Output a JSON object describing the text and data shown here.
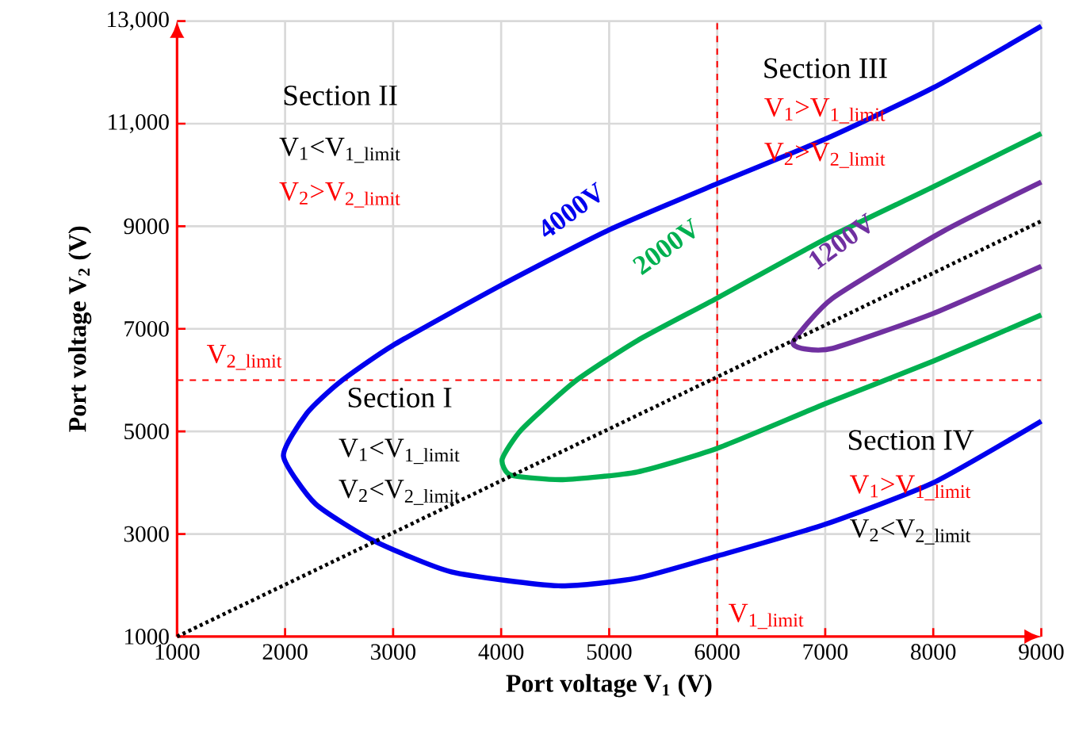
{
  "chart_data": {
    "type": "line",
    "xlabel": "Port voltage V$_{1}$ (V)",
    "ylabel": "Port voltage V$_{2}$ (V)",
    "xlim": [
      1000,
      9000
    ],
    "ylim": [
      1000,
      13000
    ],
    "xticks": [
      1000,
      2000,
      3000,
      4000,
      5000,
      6000,
      7000,
      8000,
      9000
    ],
    "yticks": [
      1000,
      3000,
      5000,
      7000,
      9000,
      {
        "value": 11000,
        "label": "11,000"
      },
      {
        "value": 13000,
        "label": "13,000"
      }
    ],
    "grid": true,
    "marker": "none",
    "series": [
      {
        "name": "4000V",
        "color": "#0000ee",
        "x": [
          9000,
          8000,
          7000,
          6000,
          5260,
          4530,
          3540,
          2810,
          2280,
          1985,
          2200,
          2500,
          3000,
          4000,
          5000,
          6000,
          7000,
          8000,
          9000
        ],
        "values": [
          5200,
          4000,
          3190,
          2570,
          2140,
          1990,
          2260,
          2880,
          3590,
          4520,
          5350,
          5950,
          6680,
          7850,
          8930,
          9830,
          10700,
          11700,
          12900
        ]
      },
      {
        "name": "2000V",
        "color": "#00b050",
        "x": [
          9000,
          8000,
          7000,
          6000,
          5260,
          4570,
          4090,
          4010,
          4190,
          4680,
          5260,
          6000,
          7000,
          8000,
          9000
        ],
        "values": [
          7270,
          6370,
          5540,
          4670,
          4210,
          4060,
          4150,
          4460,
          5040,
          5970,
          6770,
          7600,
          8750,
          9770,
          10810
        ]
      },
      {
        "name": "1200V",
        "color": "#7030a0",
        "x": [
          9000,
          8000,
          7070,
          6780,
          6710,
          7070,
          8090,
          9000
        ],
        "values": [
          8220,
          7300,
          6620,
          6620,
          6770,
          7600,
          8900,
          9860
        ]
      },
      {
        "color": "#000000",
        "line_style": "dashed",
        "x": [
          1000,
          9000
        ],
        "values": [
          1000,
          9100
        ]
      }
    ],
    "ref_lines": [
      {
        "axis": "y",
        "value": 6000,
        "label": "V$_{2_limit}$",
        "color": "#ff0000",
        "line_style": "dashed"
      },
      {
        "axis": "x",
        "value": 6000,
        "label": "V$_{1_limit}$",
        "color": "#ff0000",
        "line_style": "dashed"
      }
    ],
    "annotations": [
      "Section II",
      "V$_{1}$<V$_{1_limit}$",
      "V$_{2}$>V$_{2_limit}$",
      "Section III",
      "V$_{1}$>V$_{1_limit}$",
      "V$_{2}$>V$_{2_limit}$",
      "Section I",
      "V$_{1}$<V$_{1_limit}$",
      "V$_{2}$<V$_{2_limit}$",
      "Section IV",
      "V$_{1}$>V$_{1_limit}$",
      "V$_{2}$<V$_{2_limit}$"
    ]
  }
}
